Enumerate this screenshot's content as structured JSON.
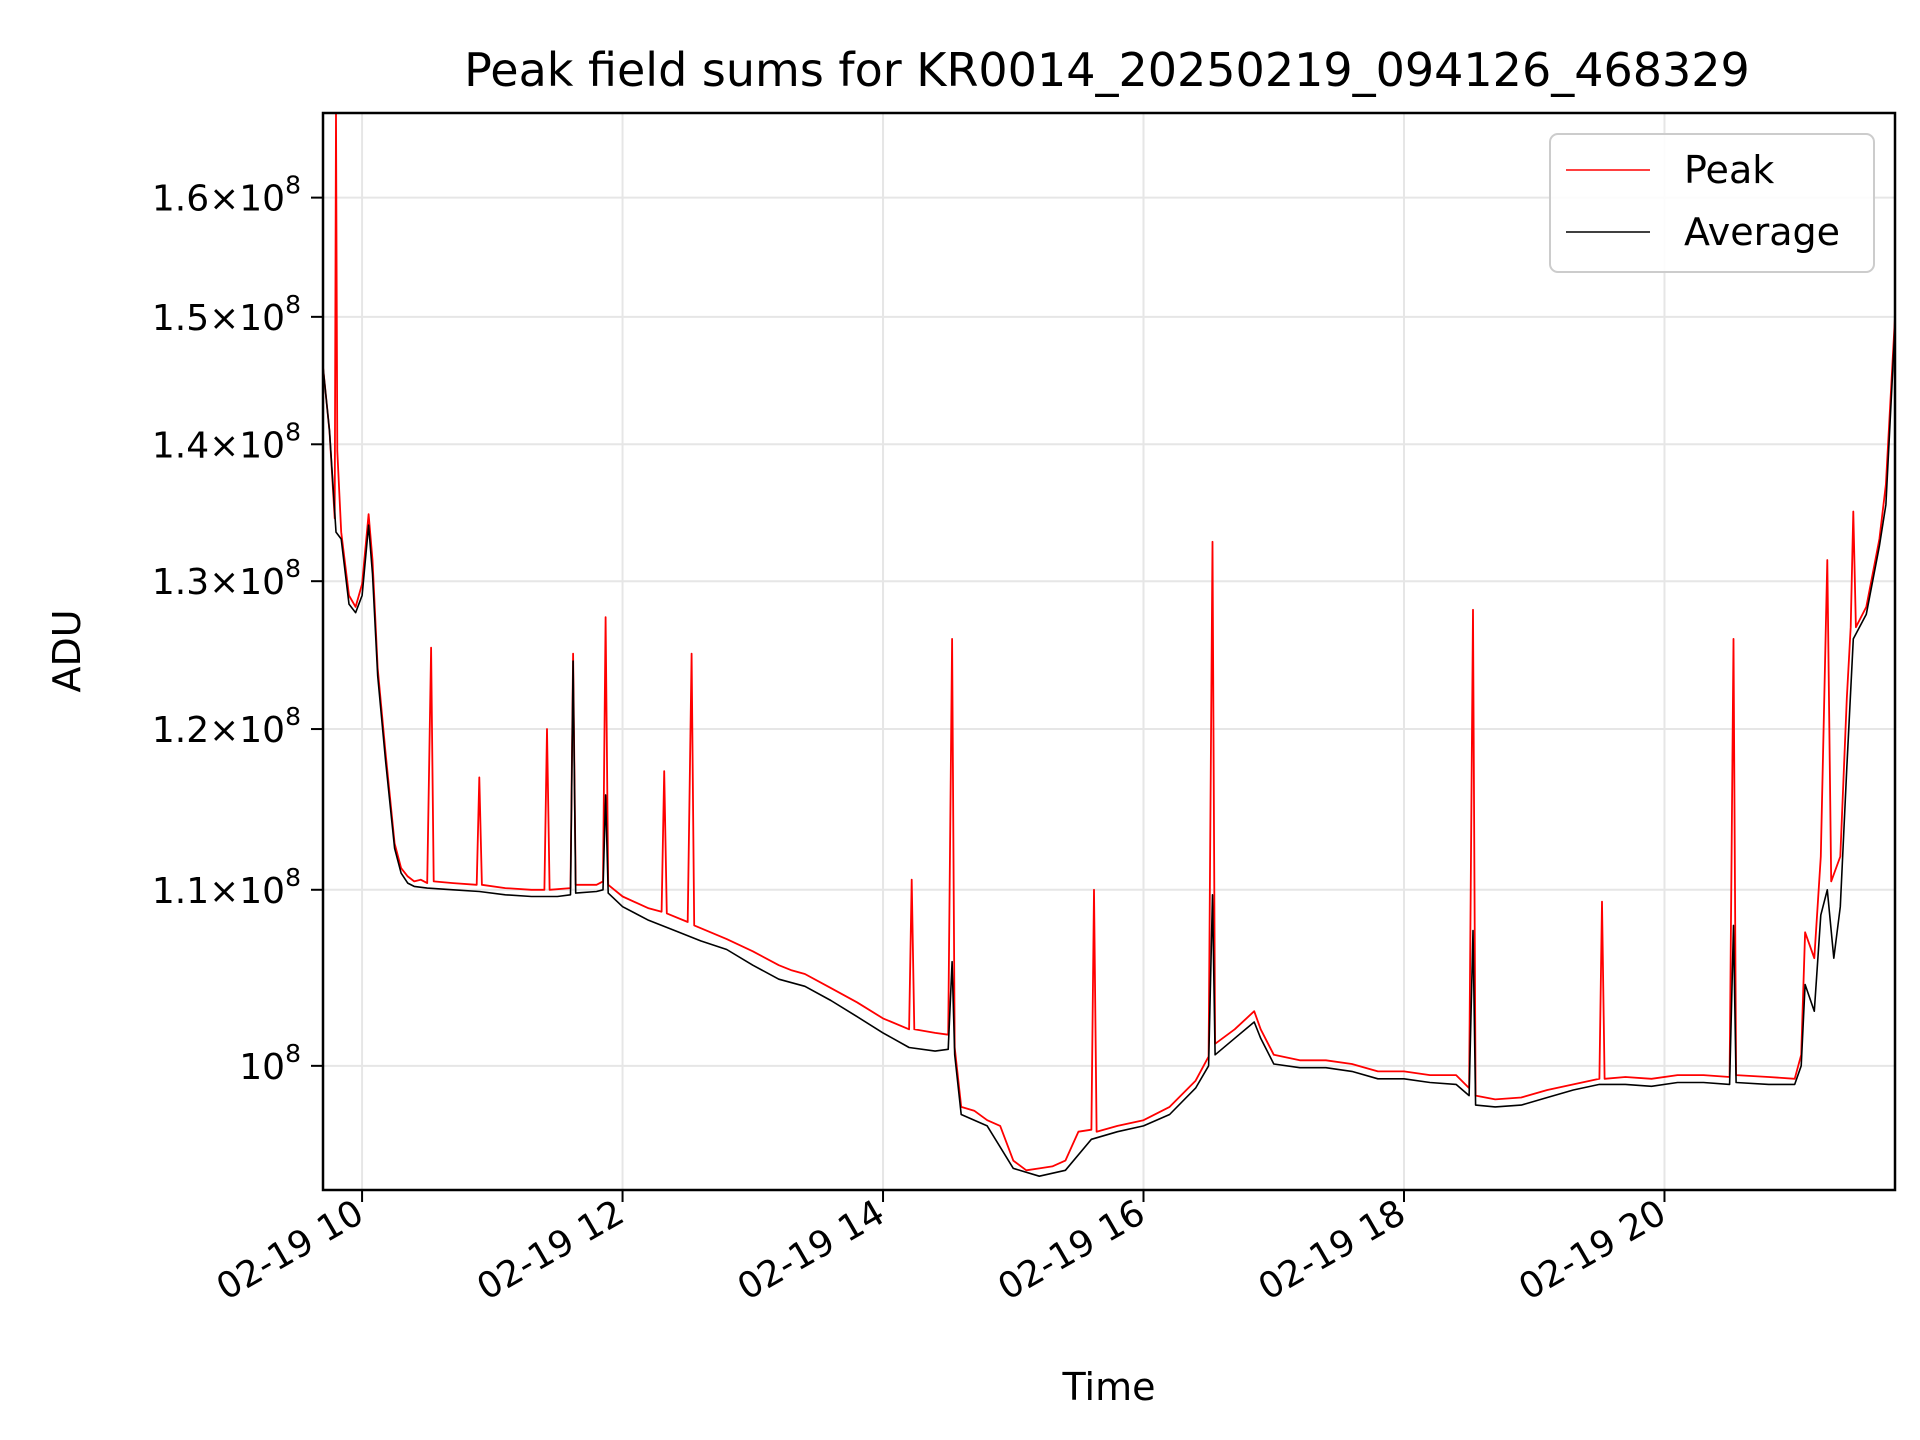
{
  "chart_data": {
    "type": "line",
    "title": "Peak field sums for KR0014_20250219_094126_468329",
    "xlabel": "Time",
    "ylabel": "ADU",
    "x_unit": "hour of day (2025-02-19)",
    "xlim": [
      9.7,
      21.77
    ],
    "ylim": [
      93500000,
      167500000
    ],
    "y_scale": "log",
    "grid": true,
    "legend_position": "top-right",
    "x_ticks": [
      {
        "value": 10,
        "label": "02-19 10"
      },
      {
        "value": 12,
        "label": "02-19 12"
      },
      {
        "value": 14,
        "label": "02-19 14"
      },
      {
        "value": 16,
        "label": "02-19 16"
      },
      {
        "value": 18,
        "label": "02-19 18"
      },
      {
        "value": 20,
        "label": "02-19 20"
      }
    ],
    "y_ticks": [
      {
        "value": 100000000,
        "mant": "",
        "exp": "8"
      },
      {
        "value": 110000000,
        "mant": "1.1",
        "exp": "8"
      },
      {
        "value": 120000000,
        "mant": "1.2",
        "exp": "8"
      },
      {
        "value": 130000000,
        "mant": "1.3",
        "exp": "8"
      },
      {
        "value": 140000000,
        "mant": "1.4",
        "exp": "8"
      },
      {
        "value": 150000000,
        "mant": "1.5",
        "exp": "8"
      },
      {
        "value": 160000000,
        "mant": "1.6",
        "exp": "8"
      }
    ],
    "series": [
      {
        "name": "Peak",
        "color": "#ff0000",
        "points": [
          [
            9.7,
            146.0
          ],
          [
            9.75,
            141.0
          ],
          [
            9.79,
            134.5
          ],
          [
            9.8,
            167.5
          ],
          [
            9.81,
            139.5
          ],
          [
            9.84,
            133.5
          ],
          [
            9.9,
            129.0
          ],
          [
            9.95,
            128.2
          ],
          [
            10.0,
            129.8
          ],
          [
            10.05,
            134.8
          ],
          [
            10.08,
            131.5
          ],
          [
            10.12,
            124.0
          ],
          [
            10.18,
            118.5
          ],
          [
            10.25,
            112.8
          ],
          [
            10.3,
            111.3
          ],
          [
            10.35,
            110.8
          ],
          [
            10.4,
            110.5
          ],
          [
            10.45,
            110.6
          ],
          [
            10.5,
            110.4
          ],
          [
            10.53,
            125.4
          ],
          [
            10.55,
            110.5
          ],
          [
            10.7,
            110.4
          ],
          [
            10.88,
            110.3
          ],
          [
            10.9,
            116.9
          ],
          [
            10.92,
            110.3
          ],
          [
            11.1,
            110.1
          ],
          [
            11.3,
            110.0
          ],
          [
            11.4,
            110.0
          ],
          [
            11.42,
            120.0
          ],
          [
            11.44,
            110.0
          ],
          [
            11.6,
            110.1
          ],
          [
            11.62,
            125.0
          ],
          [
            11.64,
            110.3
          ],
          [
            11.8,
            110.3
          ],
          [
            11.85,
            110.5
          ],
          [
            11.87,
            127.5
          ],
          [
            11.89,
            110.3
          ],
          [
            12.0,
            109.6
          ],
          [
            12.2,
            108.9
          ],
          [
            12.3,
            108.7
          ],
          [
            12.32,
            117.3
          ],
          [
            12.34,
            108.6
          ],
          [
            12.5,
            108.1
          ],
          [
            12.53,
            125.0
          ],
          [
            12.55,
            107.9
          ],
          [
            12.8,
            107.1
          ],
          [
            13.0,
            106.4
          ],
          [
            13.2,
            105.6
          ],
          [
            13.3,
            105.3
          ],
          [
            13.4,
            105.1
          ],
          [
            13.6,
            104.3
          ],
          [
            13.8,
            103.5
          ],
          [
            14.0,
            102.6
          ],
          [
            14.2,
            102.0
          ],
          [
            14.22,
            110.6
          ],
          [
            14.24,
            102.0
          ],
          [
            14.4,
            101.8
          ],
          [
            14.5,
            101.7
          ],
          [
            14.53,
            126.0
          ],
          [
            14.55,
            101.0
          ],
          [
            14.6,
            97.8
          ],
          [
            14.7,
            97.6
          ],
          [
            14.8,
            97.1
          ],
          [
            14.9,
            96.8
          ],
          [
            15.0,
            95.0
          ],
          [
            15.1,
            94.5
          ],
          [
            15.2,
            94.6
          ],
          [
            15.3,
            94.7
          ],
          [
            15.4,
            95.0
          ],
          [
            15.5,
            96.5
          ],
          [
            15.6,
            96.6
          ],
          [
            15.62,
            110.0
          ],
          [
            15.64,
            96.5
          ],
          [
            15.8,
            96.8
          ],
          [
            16.0,
            97.1
          ],
          [
            16.2,
            97.8
          ],
          [
            16.4,
            99.2
          ],
          [
            16.5,
            100.5
          ],
          [
            16.53,
            132.8
          ],
          [
            16.55,
            101.2
          ],
          [
            16.7,
            102.0
          ],
          [
            16.85,
            103.0
          ],
          [
            16.9,
            102.0
          ],
          [
            17.0,
            100.6
          ],
          [
            17.2,
            100.3
          ],
          [
            17.4,
            100.3
          ],
          [
            17.6,
            100.1
          ],
          [
            17.8,
            99.7
          ],
          [
            18.0,
            99.7
          ],
          [
            18.2,
            99.5
          ],
          [
            18.4,
            99.5
          ],
          [
            18.5,
            98.8
          ],
          [
            18.53,
            128.0
          ],
          [
            18.55,
            98.4
          ],
          [
            18.7,
            98.2
          ],
          [
            18.9,
            98.3
          ],
          [
            19.1,
            98.7
          ],
          [
            19.3,
            99.0
          ],
          [
            19.5,
            99.3
          ],
          [
            19.52,
            109.3
          ],
          [
            19.54,
            99.3
          ],
          [
            19.7,
            99.4
          ],
          [
            19.9,
            99.3
          ],
          [
            20.1,
            99.5
          ],
          [
            20.3,
            99.5
          ],
          [
            20.5,
            99.4
          ],
          [
            20.53,
            126.0
          ],
          [
            20.55,
            99.5
          ],
          [
            20.8,
            99.4
          ],
          [
            21.0,
            99.3
          ],
          [
            21.05,
            100.6
          ],
          [
            21.08,
            107.5
          ],
          [
            21.15,
            106.0
          ],
          [
            21.2,
            112.0
          ],
          [
            21.25,
            131.5
          ],
          [
            21.28,
            110.5
          ],
          [
            21.35,
            112.0
          ],
          [
            21.4,
            122.0
          ],
          [
            21.43,
            126.8
          ],
          [
            21.45,
            135.0
          ],
          [
            21.47,
            126.8
          ],
          [
            21.55,
            128.2
          ],
          [
            21.65,
            133.0
          ],
          [
            21.7,
            137.0
          ],
          [
            21.77,
            150.0
          ]
        ]
      },
      {
        "name": "Average",
        "color": "#000000",
        "points": [
          [
            9.7,
            146.0
          ],
          [
            9.75,
            141.0
          ],
          [
            9.8,
            133.5
          ],
          [
            9.84,
            133.0
          ],
          [
            9.9,
            128.4
          ],
          [
            9.95,
            127.8
          ],
          [
            10.0,
            129.0
          ],
          [
            10.05,
            134.0
          ],
          [
            10.08,
            130.5
          ],
          [
            10.12,
            123.5
          ],
          [
            10.18,
            118.0
          ],
          [
            10.25,
            112.5
          ],
          [
            10.3,
            111.0
          ],
          [
            10.35,
            110.4
          ],
          [
            10.4,
            110.2
          ],
          [
            10.5,
            110.1
          ],
          [
            10.7,
            110.0
          ],
          [
            10.9,
            109.9
          ],
          [
            11.1,
            109.7
          ],
          [
            11.3,
            109.6
          ],
          [
            11.5,
            109.6
          ],
          [
            11.6,
            109.7
          ],
          [
            11.62,
            124.5
          ],
          [
            11.64,
            109.8
          ],
          [
            11.8,
            109.9
          ],
          [
            11.85,
            110.0
          ],
          [
            11.87,
            115.8
          ],
          [
            11.89,
            109.8
          ],
          [
            12.0,
            109.0
          ],
          [
            12.2,
            108.2
          ],
          [
            12.4,
            107.6
          ],
          [
            12.6,
            107.0
          ],
          [
            12.8,
            106.5
          ],
          [
            13.0,
            105.6
          ],
          [
            13.2,
            104.8
          ],
          [
            13.4,
            104.4
          ],
          [
            13.6,
            103.6
          ],
          [
            13.8,
            102.7
          ],
          [
            14.0,
            101.8
          ],
          [
            14.2,
            101.0
          ],
          [
            14.4,
            100.8
          ],
          [
            14.5,
            100.9
          ],
          [
            14.53,
            105.8
          ],
          [
            14.55,
            100.6
          ],
          [
            14.6,
            97.4
          ],
          [
            14.8,
            96.8
          ],
          [
            15.0,
            94.6
          ],
          [
            15.2,
            94.2
          ],
          [
            15.4,
            94.5
          ],
          [
            15.6,
            96.1
          ],
          [
            15.8,
            96.5
          ],
          [
            16.0,
            96.8
          ],
          [
            16.2,
            97.4
          ],
          [
            16.4,
            98.8
          ],
          [
            16.5,
            100.0
          ],
          [
            16.53,
            109.7
          ],
          [
            16.55,
            100.6
          ],
          [
            16.7,
            101.5
          ],
          [
            16.85,
            102.4
          ],
          [
            16.9,
            101.5
          ],
          [
            17.0,
            100.1
          ],
          [
            17.2,
            99.9
          ],
          [
            17.4,
            99.9
          ],
          [
            17.6,
            99.7
          ],
          [
            17.8,
            99.3
          ],
          [
            18.0,
            99.3
          ],
          [
            18.2,
            99.1
          ],
          [
            18.4,
            99.0
          ],
          [
            18.5,
            98.4
          ],
          [
            18.53,
            107.6
          ],
          [
            18.55,
            97.9
          ],
          [
            18.7,
            97.8
          ],
          [
            18.9,
            97.9
          ],
          [
            19.1,
            98.3
          ],
          [
            19.3,
            98.7
          ],
          [
            19.5,
            99.0
          ],
          [
            19.7,
            99.0
          ],
          [
            19.9,
            98.9
          ],
          [
            20.1,
            99.1
          ],
          [
            20.3,
            99.1
          ],
          [
            20.5,
            99.0
          ],
          [
            20.53,
            107.9
          ],
          [
            20.55,
            99.1
          ],
          [
            20.8,
            99.0
          ],
          [
            21.0,
            99.0
          ],
          [
            21.05,
            100.0
          ],
          [
            21.08,
            104.5
          ],
          [
            21.15,
            103.0
          ],
          [
            21.2,
            108.5
          ],
          [
            21.25,
            110.0
          ],
          [
            21.3,
            106.0
          ],
          [
            21.35,
            109.0
          ],
          [
            21.4,
            117.5
          ],
          [
            21.45,
            126.0
          ],
          [
            21.55,
            127.7
          ],
          [
            21.65,
            132.5
          ],
          [
            21.7,
            135.5
          ],
          [
            21.77,
            149.3
          ]
        ]
      }
    ]
  }
}
